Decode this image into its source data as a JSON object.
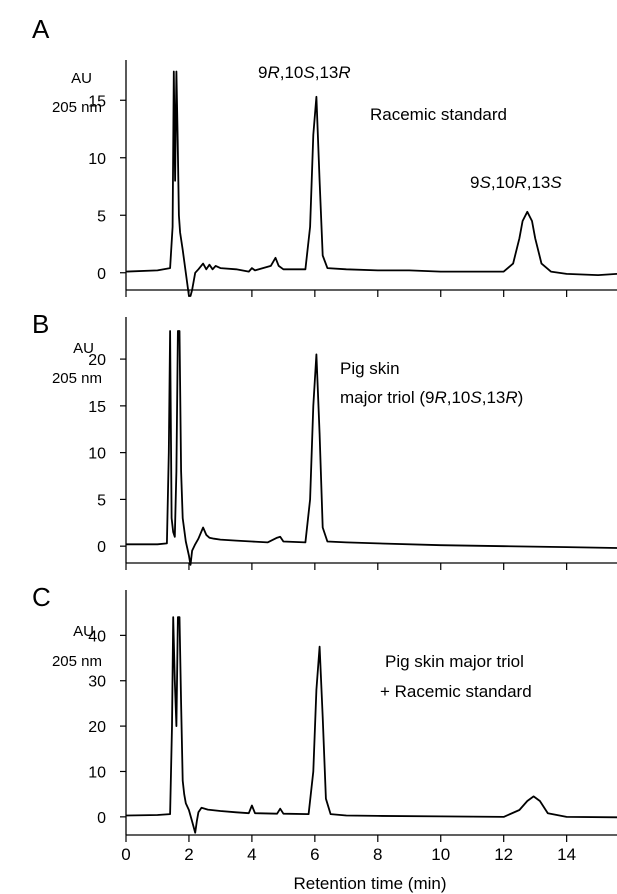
{
  "figure": {
    "xlabel": "Retention time (min)",
    "x_ticks": [
      "0",
      "2",
      "4",
      "6",
      "8",
      "10",
      "12",
      "14"
    ],
    "line_color": "#000000"
  },
  "chart_data": [
    {
      "type": "line",
      "panel": "A",
      "ylabel_lines": [
        "AU",
        "205 nm"
      ],
      "xlim": [
        0,
        15.6
      ],
      "ylim": [
        -1.5,
        18.5
      ],
      "y_ticks": [
        0,
        5,
        10,
        15
      ],
      "annotations": [
        {
          "text": "9R,10S,13R"
        },
        {
          "text": "Racemic standard"
        },
        {
          "text": "9S,10R,13S"
        }
      ],
      "peaks": [
        {
          "x": 1.55,
          "height": 17.5
        },
        {
          "x": 6.05,
          "height": 15.3
        },
        {
          "x": 12.75,
          "height": 5.3
        }
      ],
      "series": [
        {
          "x": [
            0,
            1.0,
            1.4,
            1.48,
            1.52,
            1.56,
            1.6,
            1.64,
            1.68,
            1.72,
            1.8,
            1.9,
            2.0,
            2.05,
            2.1,
            2.2,
            2.3,
            2.45,
            2.55,
            2.65,
            2.75,
            2.85,
            3.0,
            3.5,
            3.9,
            4.0,
            4.1,
            4.6,
            4.75,
            4.85,
            5.0,
            5.7,
            5.85,
            5.95,
            6.05,
            6.15,
            6.25,
            6.4,
            7.0,
            8.0,
            9.0,
            10.0,
            11.0,
            12.0,
            12.3,
            12.5,
            12.6,
            12.75,
            12.9,
            13.0,
            13.2,
            13.5,
            14.0,
            15.0,
            15.6
          ],
          "y": [
            0.1,
            0.2,
            0.4,
            4.0,
            17.5,
            8.0,
            17.5,
            12.0,
            5.0,
            3.5,
            2.0,
            0.0,
            -2.0,
            -3.5,
            -1.5,
            0.0,
            0.3,
            0.8,
            0.3,
            0.7,
            0.3,
            0.6,
            0.4,
            0.3,
            0.1,
            0.4,
            0.2,
            0.6,
            1.3,
            0.6,
            0.3,
            0.3,
            4.0,
            12.0,
            15.3,
            8.0,
            1.5,
            0.4,
            0.3,
            0.2,
            0.2,
            0.1,
            0.1,
            0.1,
            0.8,
            3.0,
            4.5,
            5.3,
            4.5,
            3.0,
            0.8,
            0.1,
            -0.1,
            -0.2,
            -0.1
          ]
        }
      ]
    },
    {
      "type": "line",
      "panel": "B",
      "ylabel_lines": [
        "AU",
        "205 nm"
      ],
      "xlim": [
        0,
        15.6
      ],
      "ylim": [
        -1.8,
        24.5
      ],
      "y_ticks": [
        0,
        5,
        10,
        15,
        20
      ],
      "annotations": [
        {
          "text": "Pig skin"
        },
        {
          "text": "major triol (9R,10S,13R)"
        }
      ],
      "peaks": [
        {
          "x": 1.4,
          "height": 23
        },
        {
          "x": 1.7,
          "height": 23
        },
        {
          "x": 6.05,
          "height": 20.5
        }
      ],
      "series": [
        {
          "x": [
            0,
            1.0,
            1.3,
            1.36,
            1.4,
            1.45,
            1.5,
            1.55,
            1.6,
            1.65,
            1.7,
            1.75,
            1.8,
            1.9,
            2.0,
            2.05,
            2.1,
            2.2,
            2.3,
            2.45,
            2.55,
            2.65,
            2.8,
            3.0,
            3.5,
            4.0,
            4.5,
            4.8,
            4.9,
            5.0,
            5.7,
            5.85,
            5.95,
            6.05,
            6.15,
            6.25,
            6.4,
            7.0,
            8.0,
            10.0,
            12.0,
            14.0,
            15.6
          ],
          "y": [
            0.2,
            0.2,
            0.3,
            10.0,
            23.0,
            3.0,
            1.5,
            1.0,
            8.0,
            23.0,
            23.0,
            8.0,
            3.0,
            0.5,
            -1.0,
            -2.0,
            -0.5,
            0.2,
            0.8,
            2.0,
            1.2,
            0.9,
            0.8,
            0.7,
            0.6,
            0.5,
            0.4,
            0.9,
            1.0,
            0.5,
            0.4,
            5.0,
            15.0,
            20.5,
            12.0,
            2.0,
            0.5,
            0.4,
            0.3,
            0.1,
            0.0,
            -0.1,
            -0.2
          ]
        }
      ]
    },
    {
      "type": "line",
      "panel": "C",
      "ylabel_lines": [
        "AU",
        "205 nm"
      ],
      "xlim": [
        0,
        15.6
      ],
      "ylim": [
        -4,
        50
      ],
      "y_ticks": [
        0,
        10,
        20,
        30,
        40
      ],
      "annotations": [
        {
          "text": "Pig skin major triol"
        },
        {
          "text": "+ Racemic standard"
        }
      ],
      "peaks": [
        {
          "x": 1.55,
          "height": 44
        },
        {
          "x": 1.75,
          "height": 44
        },
        {
          "x": 6.15,
          "height": 37.5
        },
        {
          "x": 12.95,
          "height": 4.5
        }
      ],
      "series": [
        {
          "x": [
            0,
            1.0,
            1.4,
            1.46,
            1.5,
            1.55,
            1.6,
            1.65,
            1.7,
            1.75,
            1.8,
            1.85,
            1.9,
            2.0,
            2.1,
            2.2,
            2.25,
            2.3,
            2.4,
            2.6,
            3.0,
            3.5,
            3.9,
            4.0,
            4.1,
            4.8,
            4.9,
            5.0,
            5.8,
            5.95,
            6.05,
            6.15,
            6.25,
            6.35,
            6.5,
            7.0,
            8.0,
            10.0,
            12.0,
            12.5,
            12.75,
            12.95,
            13.15,
            13.4,
            14.0,
            15.6
          ],
          "y": [
            0.3,
            0.4,
            0.6,
            20.0,
            44.0,
            30.0,
            20.0,
            44.0,
            44.0,
            25.0,
            8.0,
            5.0,
            3.0,
            1.5,
            -1.0,
            -3.5,
            -1.0,
            1.0,
            2.0,
            1.6,
            1.3,
            1.0,
            0.8,
            2.5,
            0.8,
            0.7,
            1.8,
            0.7,
            0.6,
            10.0,
            28.0,
            37.5,
            22.0,
            4.0,
            0.6,
            0.3,
            0.2,
            0.1,
            0.0,
            1.5,
            3.5,
            4.5,
            3.5,
            0.8,
            0.0,
            -0.1
          ]
        }
      ]
    }
  ]
}
